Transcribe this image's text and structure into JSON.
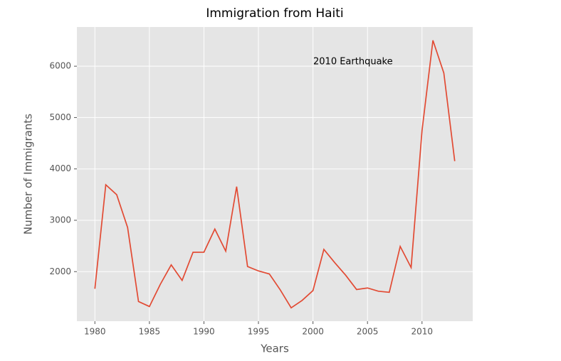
{
  "chart_data": {
    "type": "line",
    "title": "Immigration from Haiti",
    "x_label": "Years",
    "y_label": "Number of Immigrants",
    "annotation": "2010 Earthquake",
    "x": [
      1980,
      1981,
      1982,
      1983,
      1984,
      1985,
      1986,
      1987,
      1988,
      1989,
      1990,
      1991,
      1992,
      1993,
      1994,
      1995,
      1996,
      1997,
      1998,
      1999,
      2000,
      2001,
      2002,
      2003,
      2004,
      2005,
      2006,
      2007,
      2008,
      2009,
      2010,
      2011,
      2012,
      2013
    ],
    "series": [
      {
        "name": "Haiti",
        "color": "#E24A33",
        "values": [
          1666,
          3692,
          3498,
          2860,
          1418,
          1321,
          1753,
          2132,
          1829,
          2377,
          2379,
          2829,
          2399,
          3655,
          2100,
          2014,
          1955,
          1645,
          1295,
          1439,
          1631,
          2433,
          2174,
          1930,
          1652,
          1682,
          1619,
          1598,
          2491,
          2080,
          4744,
          6503,
          5868,
          4152
        ]
      }
    ],
    "xlim": [
      1978.35,
      2014.65
    ],
    "xticks": [
      1980,
      1985,
      1990,
      1995,
      2000,
      2005,
      2010
    ],
    "ylim": [
      1035,
      6763
    ],
    "yticks": [
      2000,
      3000,
      4000,
      5000,
      6000
    ],
    "grid": true
  }
}
